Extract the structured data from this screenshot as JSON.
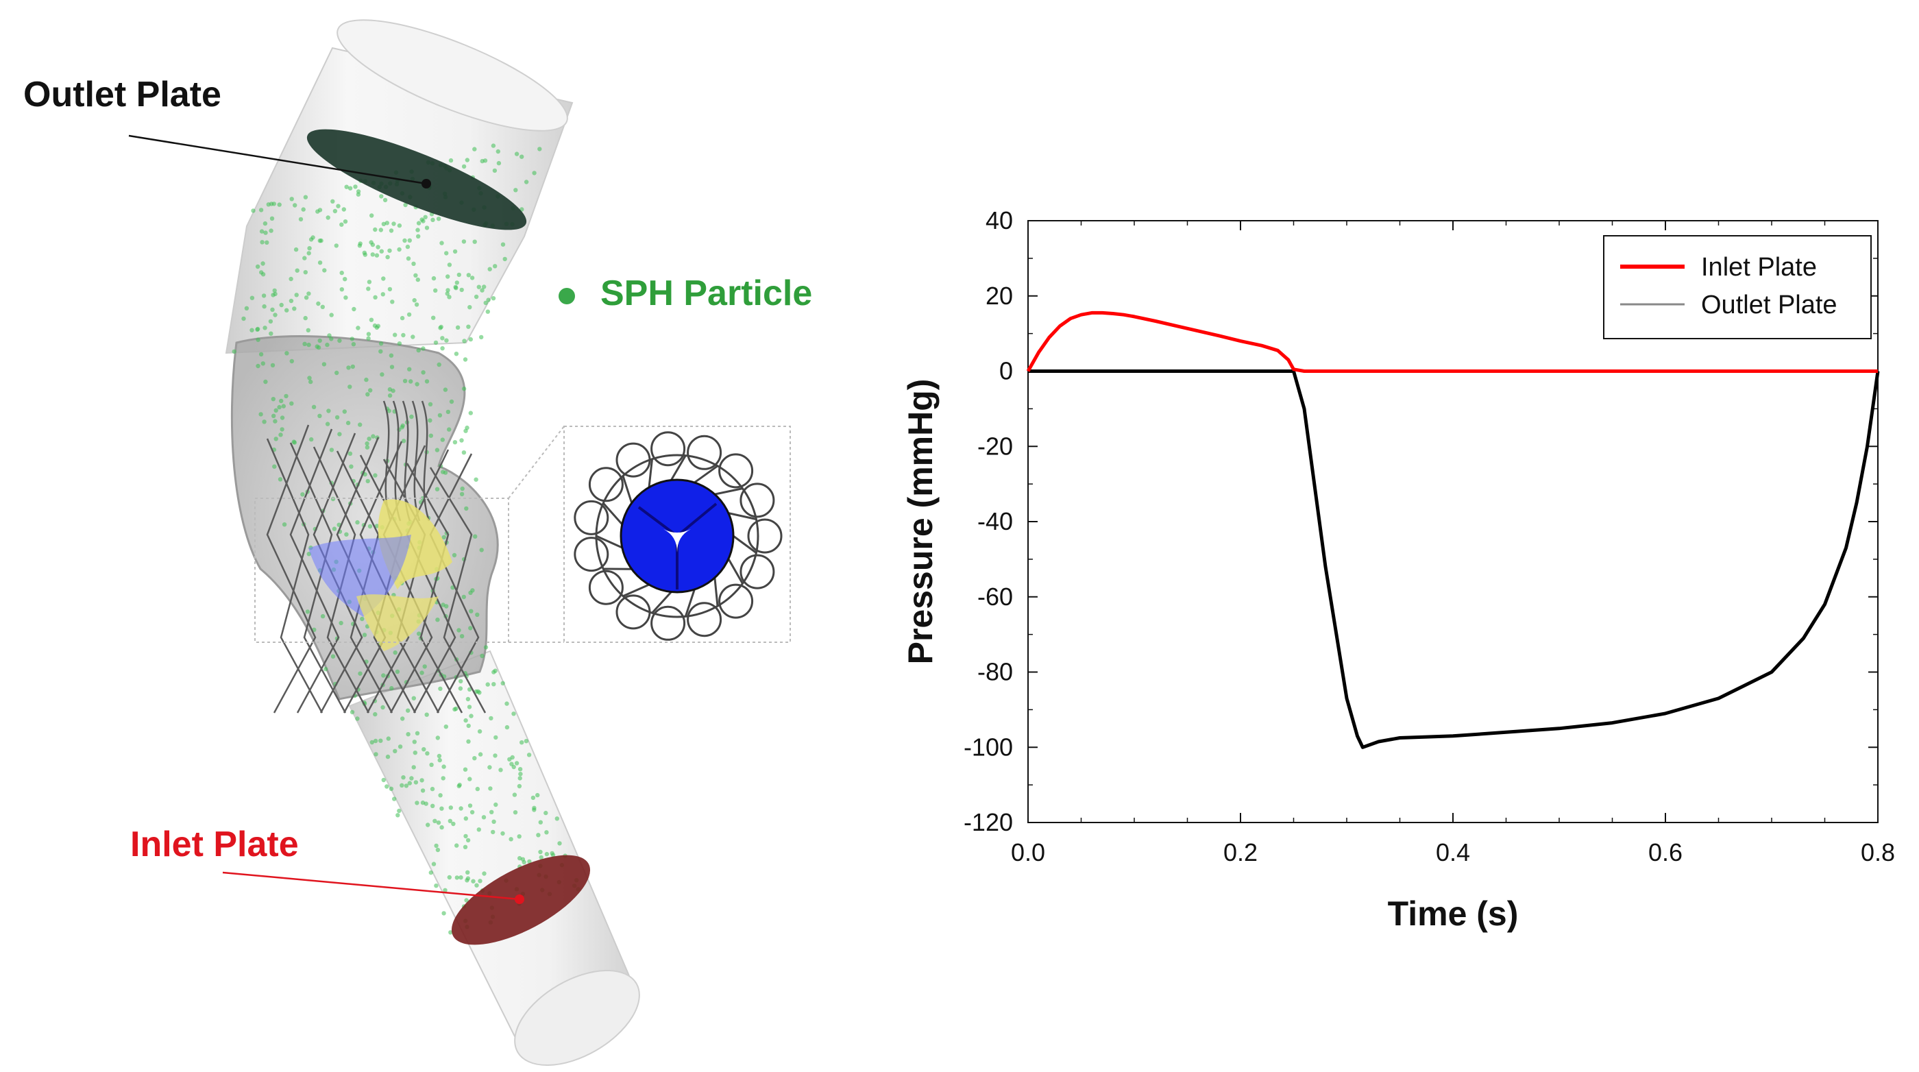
{
  "diagram": {
    "labels": {
      "outlet_plate": "Outlet Plate",
      "inlet_plate": "Inlet Plate",
      "sph_particle": "SPH Particle"
    },
    "colors": {
      "outlet_plate": "#1e3a2e",
      "inlet_plate": "#7a1f1f",
      "particles": "#3fbf55",
      "leaflet_blue": "#1020e8",
      "leaflet_yellow": "#e8e070",
      "stent": "#555555",
      "tube": "#e8e8e8"
    },
    "icons": [
      "sph-particle-dot-icon",
      "valve-top-view-icon",
      "stent-mesh-icon"
    ]
  },
  "chart_data": {
    "type": "line",
    "title": "",
    "xlabel": "Time (s)",
    "ylabel": "Pressure (mmHg)",
    "xlim": [
      0.0,
      0.8
    ],
    "ylim": [
      -120,
      40
    ],
    "xticks": [
      0.0,
      0.2,
      0.4,
      0.6,
      0.8
    ],
    "xtick_labels": [
      "0.0",
      "0.2",
      "0.4",
      "0.6",
      "0.8"
    ],
    "yticks": [
      40,
      20,
      0,
      -20,
      -40,
      -60,
      -80,
      -100,
      -120
    ],
    "ytick_labels": [
      "40",
      "20",
      "0",
      "-20",
      "-40",
      "-60",
      "-80",
      "-100",
      "-120"
    ],
    "grid": false,
    "legend_position": "top-right",
    "series": [
      {
        "name": "Inlet Plate",
        "color": "#ff0000",
        "x": [
          0.0,
          0.01,
          0.02,
          0.03,
          0.04,
          0.05,
          0.06,
          0.07,
          0.08,
          0.09,
          0.1,
          0.12,
          0.14,
          0.16,
          0.18,
          0.2,
          0.22,
          0.235,
          0.245,
          0.25,
          0.26,
          0.3,
          0.4,
          0.5,
          0.6,
          0.7,
          0.8
        ],
        "y": [
          0,
          5,
          9,
          12,
          14,
          15,
          15.5,
          15.5,
          15.3,
          15,
          14.5,
          13.3,
          12,
          10.7,
          9.4,
          8,
          6.8,
          5.5,
          3,
          0.5,
          0,
          0,
          0,
          0,
          0,
          0,
          0
        ]
      },
      {
        "name": "Outlet Plate",
        "color": "#000000",
        "x": [
          0.0,
          0.1,
          0.2,
          0.245,
          0.25,
          0.26,
          0.28,
          0.3,
          0.31,
          0.315,
          0.33,
          0.35,
          0.4,
          0.45,
          0.5,
          0.55,
          0.6,
          0.65,
          0.7,
          0.73,
          0.75,
          0.77,
          0.78,
          0.79,
          0.795,
          0.8
        ],
        "y": [
          0,
          0,
          0,
          0,
          0,
          -10,
          -52,
          -87,
          -97,
          -100,
          -98.5,
          -97.5,
          -97,
          -96,
          -95,
          -93.5,
          -91,
          -87,
          -80,
          -71,
          -62,
          -47,
          -35,
          -20,
          -10,
          0
        ]
      }
    ]
  }
}
